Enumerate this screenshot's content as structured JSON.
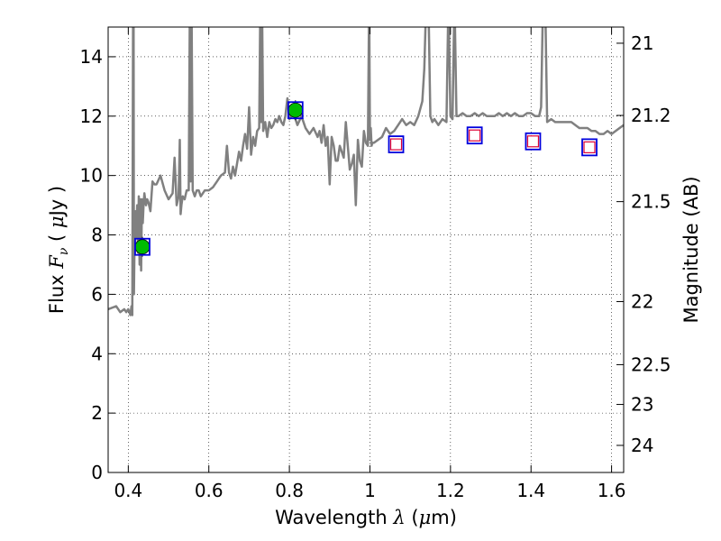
{
  "chart_data": {
    "type": "line",
    "xlabel": {
      "text": "Wavelength",
      "symbol": "λ",
      "unit_open": "(",
      "unit_mu": "μ",
      "unit_rest": "m)"
    },
    "ylabel": {
      "text": "Flux",
      "symbol": "F",
      "subscript": "ν",
      "unit_open": "(",
      "unit_mu": "μ",
      "unit_rest": "Jy",
      "unit_close": ")"
    },
    "y2label": "Magnitude (AB)",
    "xlim": [
      0.35,
      1.63
    ],
    "ylim": [
      0,
      15
    ],
    "grid": true,
    "x_ticks": [
      {
        "value": 0.4,
        "label": "0.4"
      },
      {
        "value": 0.6,
        "label": "0.6"
      },
      {
        "value": 0.8,
        "label": "0.8"
      },
      {
        "value": 1.0,
        "label": "1"
      },
      {
        "value": 1.2,
        "label": "1.2"
      },
      {
        "value": 1.4,
        "label": "1.4"
      },
      {
        "value": 1.6,
        "label": "1.6"
      }
    ],
    "y_ticks": [
      {
        "value": 0,
        "label": "0"
      },
      {
        "value": 2,
        "label": "2"
      },
      {
        "value": 4,
        "label": "4"
      },
      {
        "value": 6,
        "label": "6"
      },
      {
        "value": 8,
        "label": "8"
      },
      {
        "value": 10,
        "label": "10"
      },
      {
        "value": 12,
        "label": "12"
      },
      {
        "value": 14,
        "label": "14"
      }
    ],
    "y2_ticks": [
      {
        "label": "21",
        "mag": 21
      },
      {
        "label": "21.2",
        "mag": 21.2
      },
      {
        "label": "21.5",
        "mag": 21.5
      },
      {
        "label": "22",
        "mag": 22
      },
      {
        "label": "22.5",
        "mag": 22.5
      },
      {
        "label": "23",
        "mag": 23
      },
      {
        "label": "24",
        "mag": 24
      }
    ],
    "colors": {
      "spectrum": "#808080",
      "photometry": "#00bb00",
      "model_box": "#0000dd",
      "upper_marker": "#dd0033"
    },
    "spectrum": {
      "x": [
        0.35,
        0.37,
        0.38,
        0.39,
        0.395,
        0.4,
        0.405,
        0.408,
        0.41,
        0.412,
        0.413,
        0.414,
        0.416,
        0.418,
        0.42,
        0.422,
        0.424,
        0.426,
        0.428,
        0.43,
        0.432,
        0.434,
        0.436,
        0.438,
        0.44,
        0.442,
        0.444,
        0.447,
        0.45,
        0.455,
        0.46,
        0.465,
        0.47,
        0.48,
        0.49,
        0.5,
        0.51,
        0.515,
        0.52,
        0.525,
        0.528,
        0.53,
        0.532,
        0.535,
        0.54,
        0.545,
        0.55,
        0.553,
        0.555,
        0.557,
        0.56,
        0.565,
        0.57,
        0.575,
        0.58,
        0.59,
        0.6,
        0.61,
        0.62,
        0.63,
        0.64,
        0.645,
        0.65,
        0.655,
        0.66,
        0.665,
        0.67,
        0.675,
        0.68,
        0.685,
        0.69,
        0.695,
        0.7,
        0.705,
        0.71,
        0.715,
        0.72,
        0.725,
        0.728,
        0.73,
        0.732,
        0.735,
        0.74,
        0.745,
        0.75,
        0.755,
        0.76,
        0.765,
        0.77,
        0.775,
        0.78,
        0.785,
        0.79,
        0.795,
        0.8,
        0.81,
        0.82,
        0.83,
        0.84,
        0.85,
        0.86,
        0.87,
        0.875,
        0.88,
        0.885,
        0.89,
        0.895,
        0.9,
        0.905,
        0.91,
        0.915,
        0.92,
        0.925,
        0.93,
        0.935,
        0.94,
        0.945,
        0.95,
        0.955,
        0.96,
        0.965,
        0.97,
        0.975,
        0.98,
        0.985,
        0.99,
        0.995,
        0.998,
        1.0,
        1.002,
        1.004,
        1.006,
        1.01,
        1.02,
        1.03,
        1.04,
        1.05,
        1.06,
        1.07,
        1.08,
        1.09,
        1.1,
        1.11,
        1.12,
        1.13,
        1.135,
        1.14,
        1.145,
        1.15,
        1.155,
        1.16,
        1.17,
        1.18,
        1.19,
        1.195,
        1.2,
        1.205,
        1.21,
        1.215,
        1.22,
        1.23,
        1.24,
        1.25,
        1.26,
        1.27,
        1.28,
        1.29,
        1.3,
        1.31,
        1.32,
        1.33,
        1.34,
        1.35,
        1.36,
        1.37,
        1.38,
        1.39,
        1.4,
        1.41,
        1.415,
        1.42,
        1.425,
        1.43,
        1.435,
        1.44,
        1.45,
        1.46,
        1.47,
        1.48,
        1.49,
        1.5,
        1.51,
        1.52,
        1.53,
        1.54,
        1.55,
        1.56,
        1.57,
        1.58,
        1.59,
        1.6,
        1.61,
        1.62,
        1.63
      ],
      "y": [
        5.5,
        5.6,
        5.4,
        5.5,
        5.4,
        5.5,
        5.3,
        5.6,
        5.3,
        16.0,
        16.0,
        6.0,
        8.3,
        8.8,
        7.9,
        9.0,
        7.4,
        9.3,
        7.0,
        9.2,
        6.8,
        9.2,
        8.4,
        9.0,
        9.4,
        9.2,
        9.0,
        9.2,
        9.1,
        8.8,
        9.8,
        9.7,
        9.7,
        10.0,
        9.5,
        9.2,
        9.4,
        10.6,
        9.0,
        9.3,
        11.2,
        8.7,
        9.0,
        9.3,
        9.2,
        9.5,
        9.5,
        16.0,
        9.8,
        16.0,
        9.5,
        9.3,
        9.5,
        9.5,
        9.3,
        9.5,
        9.5,
        9.6,
        9.8,
        10.0,
        10.1,
        11.0,
        10.1,
        9.9,
        10.3,
        10.0,
        10.4,
        10.8,
        10.5,
        11.0,
        11.4,
        10.9,
        12.3,
        10.7,
        11.3,
        11.0,
        11.5,
        11.6,
        16.0,
        11.8,
        16.0,
        11.5,
        11.8,
        11.3,
        11.8,
        11.6,
        11.7,
        11.9,
        11.8,
        12.0,
        11.8,
        11.7,
        12.0,
        12.6,
        11.9,
        12.1,
        11.7,
        12.0,
        11.6,
        11.4,
        11.6,
        11.3,
        11.5,
        11.1,
        11.7,
        11.0,
        11.3,
        9.7,
        11.3,
        11.0,
        10.5,
        10.5,
        11.0,
        10.8,
        10.6,
        11.8,
        11.0,
        10.2,
        10.4,
        10.7,
        9.0,
        11.2,
        10.5,
        10.3,
        11.5,
        11.1,
        11.0,
        16.0,
        11.2,
        11.6,
        11.0,
        11.1,
        11.1,
        11.2,
        11.3,
        11.6,
        11.4,
        11.5,
        11.7,
        11.9,
        11.7,
        11.8,
        11.7,
        12.0,
        12.5,
        13.6,
        16.0,
        16.0,
        12.0,
        11.8,
        11.9,
        11.7,
        11.9,
        11.8,
        16.0,
        12.0,
        11.9,
        16.0,
        12.0,
        12.0,
        12.1,
        12.0,
        12.0,
        12.1,
        12.0,
        12.1,
        12.0,
        12.0,
        12.0,
        12.1,
        12.0,
        12.1,
        12.0,
        12.1,
        12.0,
        12.0,
        12.1,
        12.1,
        12.0,
        12.0,
        12.0,
        12.3,
        16.0,
        16.0,
        11.8,
        11.9,
        11.8,
        11.8,
        11.8,
        11.8,
        11.8,
        11.7,
        11.6,
        11.6,
        11.6,
        11.5,
        11.5,
        11.4,
        11.4,
        11.5,
        11.4,
        11.5,
        11.6,
        11.7
      ]
    },
    "photometry": [
      {
        "x": 0.435,
        "y": 7.6
      },
      {
        "x": 0.815,
        "y": 12.2
      }
    ],
    "model_points": [
      {
        "x": 0.435,
        "y": 7.6,
        "upper": false
      },
      {
        "x": 0.815,
        "y": 12.2,
        "upper": false
      },
      {
        "x": 1.065,
        "y": 11.05,
        "upper": true
      },
      {
        "x": 1.26,
        "y": 11.35,
        "upper": true
      },
      {
        "x": 1.405,
        "y": 11.15,
        "upper": true
      },
      {
        "x": 1.545,
        "y": 10.95,
        "upper": true
      }
    ]
  }
}
